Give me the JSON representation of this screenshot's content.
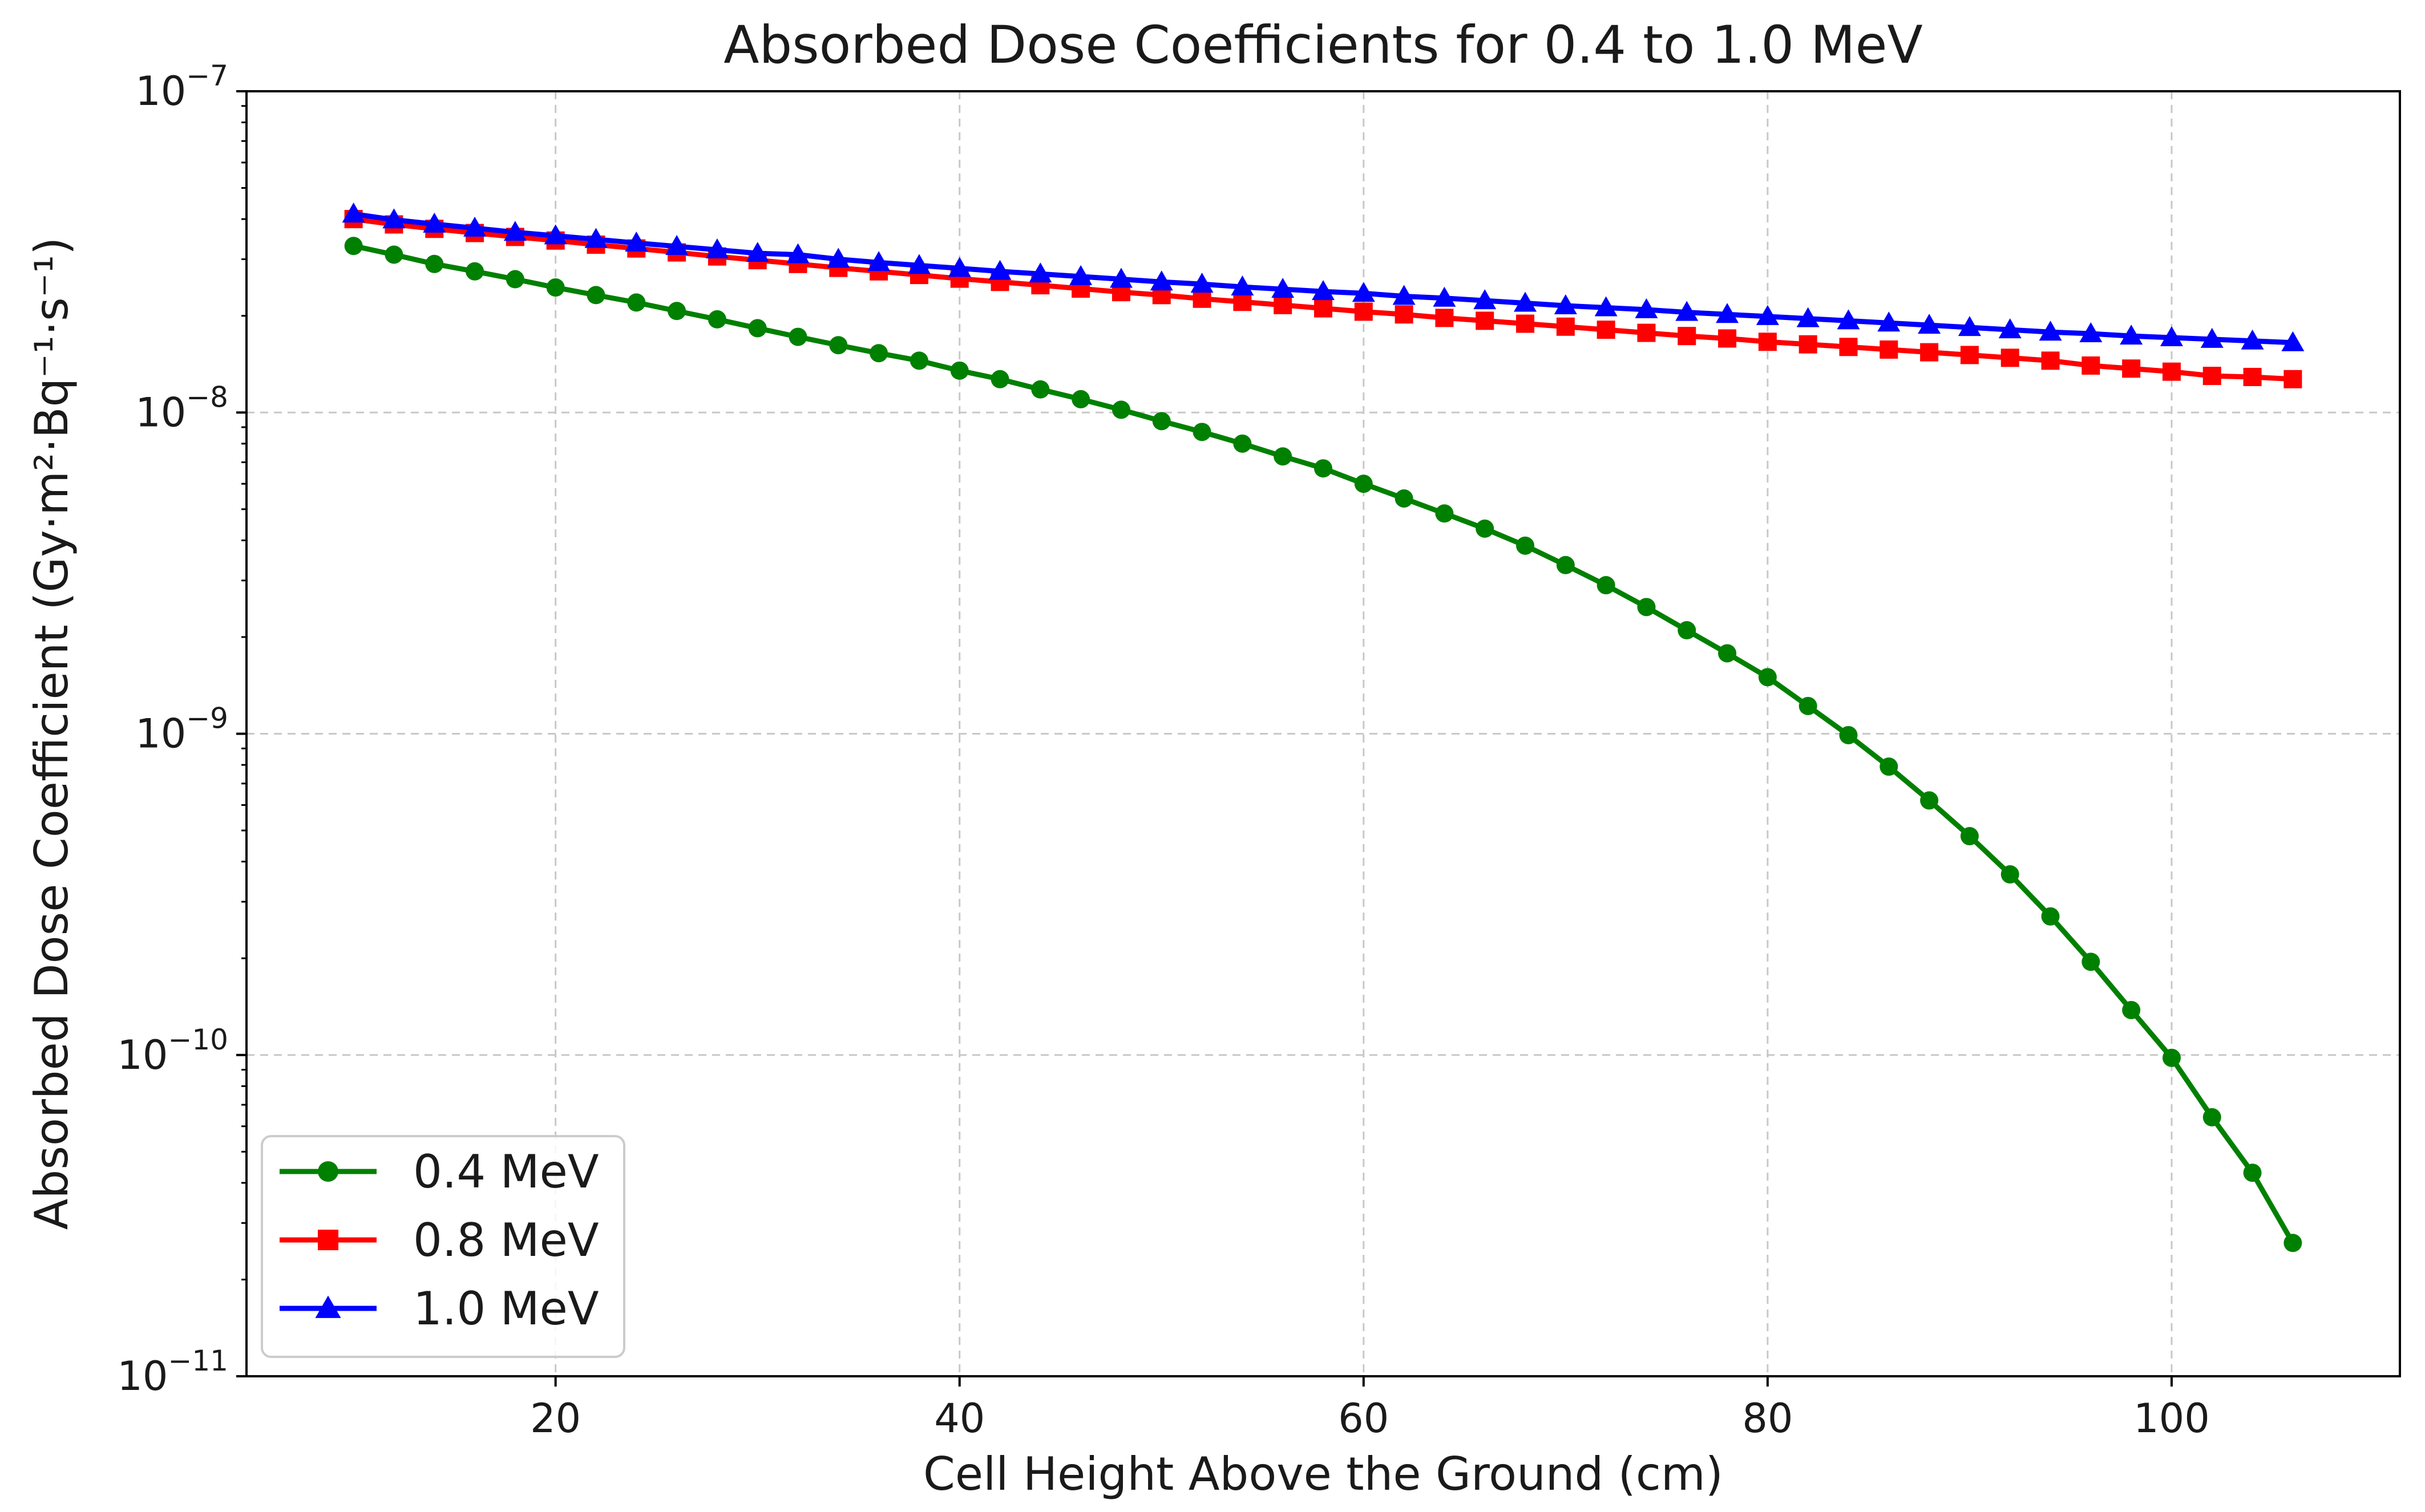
{
  "chart_data": {
    "type": "line",
    "title": "Absorbed Dose Coefficients for 0.4 to 1.0 MeV",
    "xlabel": "Cell Height Above the Ground (cm)",
    "ylabel": "Absorbed Dose Coefficient (Gy·m²·Bq⁻¹·s⁻¹)",
    "yscale": "log",
    "xlim": [
      4.7,
      111.3
    ],
    "ylim": [
      1e-11,
      1e-07
    ],
    "xticks": [
      20,
      40,
      60,
      80,
      100
    ],
    "xtick_labels": [
      "20",
      "40",
      "60",
      "80",
      "100"
    ],
    "ytick_values": [
      1e-07,
      1e-08,
      1e-09,
      1e-10,
      1e-11
    ],
    "ytick_labels": [
      {
        "base": "10",
        "exp": "−7"
      },
      {
        "base": "10",
        "exp": "−8"
      },
      {
        "base": "10",
        "exp": "−9"
      },
      {
        "base": "10",
        "exp": "−10"
      },
      {
        "base": "10",
        "exp": "−11"
      }
    ],
    "grid": true,
    "legend_position": "bottom-left",
    "x": [
      10,
      12,
      14,
      16,
      18,
      20,
      22,
      24,
      26,
      28,
      30,
      32,
      34,
      36,
      38,
      40,
      42,
      44,
      46,
      48,
      50,
      52,
      54,
      56,
      58,
      60,
      62,
      64,
      66,
      68,
      70,
      72,
      74,
      76,
      78,
      80,
      82,
      84,
      86,
      88,
      90,
      92,
      94,
      96,
      98,
      100,
      102,
      104,
      106
    ],
    "series": [
      {
        "name": "0.4 MeV",
        "color": "#008000",
        "marker": "circle",
        "values": [
          3.3e-08,
          3.1e-08,
          2.9e-08,
          2.75e-08,
          2.6e-08,
          2.45e-08,
          2.32e-08,
          2.2e-08,
          2.07e-08,
          1.95e-08,
          1.83e-08,
          1.72e-08,
          1.62e-08,
          1.53e-08,
          1.45e-08,
          1.35e-08,
          1.27e-08,
          1.18e-08,
          1.1e-08,
          1.02e-08,
          9.4e-09,
          8.7e-09,
          8e-09,
          7.3e-09,
          6.7e-09,
          6e-09,
          5.4e-09,
          4.85e-09,
          4.35e-09,
          3.85e-09,
          3.35e-09,
          2.9e-09,
          2.48e-09,
          2.1e-09,
          1.78e-09,
          1.5e-09,
          1.22e-09,
          9.9e-10,
          7.9e-10,
          6.2e-10,
          4.8e-10,
          3.65e-10,
          2.7e-10,
          1.95e-10,
          1.38e-10,
          9.8e-11,
          6.4e-11,
          4.3e-11,
          2.6e-11
        ]
      },
      {
        "name": "0.8 MeV",
        "color": "#ff0000",
        "marker": "square",
        "values": [
          4e-08,
          3.85e-08,
          3.73e-08,
          3.62e-08,
          3.52e-08,
          3.43e-08,
          3.33e-08,
          3.24e-08,
          3.15e-08,
          3.06e-08,
          2.98e-08,
          2.9e-08,
          2.82e-08,
          2.75e-08,
          2.68e-08,
          2.61e-08,
          2.55e-08,
          2.49e-08,
          2.43e-08,
          2.37e-08,
          2.32e-08,
          2.26e-08,
          2.21e-08,
          2.16e-08,
          2.11e-08,
          2.06e-08,
          2.02e-08,
          1.97e-08,
          1.93e-08,
          1.89e-08,
          1.85e-08,
          1.81e-08,
          1.77e-08,
          1.73e-08,
          1.7e-08,
          1.66e-08,
          1.63e-08,
          1.6e-08,
          1.57e-08,
          1.54e-08,
          1.51e-08,
          1.48e-08,
          1.45e-08,
          1.4e-08,
          1.37e-08,
          1.34e-08,
          1.3e-08,
          1.29e-08,
          1.27e-08
        ]
      },
      {
        "name": "1.0 MeV",
        "color": "#0000ff",
        "marker": "triangle",
        "values": [
          4.15e-08,
          3.98e-08,
          3.86e-08,
          3.75e-08,
          3.64e-08,
          3.55e-08,
          3.46e-08,
          3.37e-08,
          3.29e-08,
          3.21e-08,
          3.13e-08,
          3.1e-08,
          3e-08,
          2.93e-08,
          2.87e-08,
          2.81e-08,
          2.75e-08,
          2.7e-08,
          2.65e-08,
          2.6e-08,
          2.55e-08,
          2.51e-08,
          2.46e-08,
          2.42e-08,
          2.38e-08,
          2.35e-08,
          2.3e-08,
          2.27e-08,
          2.23e-08,
          2.19e-08,
          2.15e-08,
          2.12e-08,
          2.09e-08,
          2.05e-08,
          2.02e-08,
          1.99e-08,
          1.96e-08,
          1.93e-08,
          1.9e-08,
          1.87e-08,
          1.84e-08,
          1.81e-08,
          1.78e-08,
          1.76e-08,
          1.73e-08,
          1.71e-08,
          1.69e-08,
          1.67e-08,
          1.65e-08
        ]
      }
    ]
  }
}
